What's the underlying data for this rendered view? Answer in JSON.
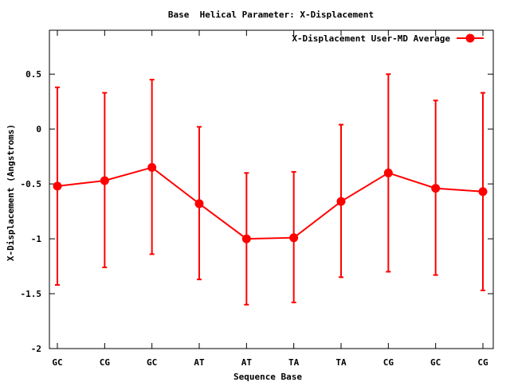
{
  "chart_data": {
    "type": "line",
    "title": "Base  Helical Parameter: X-Displacement",
    "xlabel": "Sequence Base",
    "ylabel": "X-Displacement (Angstroms)",
    "categories": [
      "GC",
      "CG",
      "GC",
      "AT",
      "AT",
      "TA",
      "TA",
      "CG",
      "GC",
      "CG"
    ],
    "ylim": [
      -2,
      0.9
    ],
    "yticks": [
      -2,
      -1.5,
      -1,
      -0.5,
      0,
      0.5
    ],
    "ytick_labels": [
      "-2",
      "-1.5",
      "-1",
      "-0.5",
      "0",
      "0.5"
    ],
    "grid": false,
    "legend_position": "top-right",
    "series": [
      {
        "name": "X-Displacement User-MD Average",
        "color": "#ff0000",
        "values": [
          -0.52,
          -0.47,
          -0.35,
          -0.68,
          -1.0,
          -0.99,
          -0.66,
          -0.4,
          -0.54,
          -0.57
        ],
        "error_low": [
          -1.42,
          -1.26,
          -1.14,
          -1.37,
          -1.6,
          -1.58,
          -1.35,
          -1.3,
          -1.33,
          -1.47
        ],
        "error_high": [
          0.38,
          0.33,
          0.45,
          0.02,
          -0.4,
          -0.39,
          0.04,
          0.5,
          0.26,
          0.33
        ]
      }
    ]
  }
}
